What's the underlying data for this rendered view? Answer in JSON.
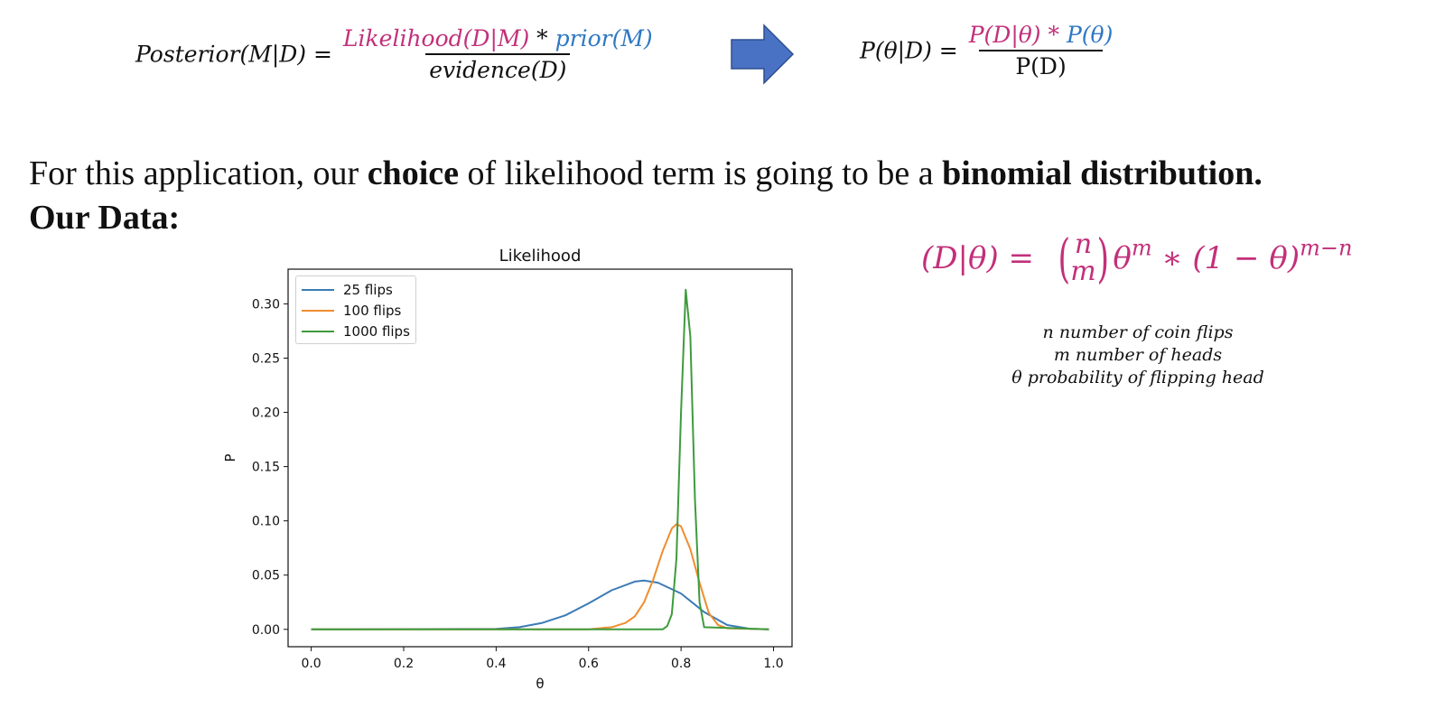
{
  "formula1": {
    "lhs": "Posterior(M|D) =",
    "num_likelihood": "Likelihood(D|M)",
    "num_op": " * ",
    "num_prior": "prior(M)",
    "den": "evidence(D)"
  },
  "arrow_color": "#4a72c4",
  "formula2": {
    "lhs": "P(θ|D) =",
    "num_a": "P(D|θ)",
    "num_op": " * ",
    "num_b": "P(θ)",
    "den": "P(D)"
  },
  "sentence": {
    "part1": "For this application, our ",
    "bold1": "choice",
    "part2": " of likelihood term is going to be a ",
    "bold2": "binomial distribution."
  },
  "our_data": "Our Data:",
  "binomial": {
    "lhs": "(D|θ) = ",
    "n": "n",
    "m": "m",
    "rhs1": "θ",
    "exp1": "m",
    "rhs2": " ∗ (1 − θ)",
    "exp2": "m−n"
  },
  "notes": [
    "n number of coin flips",
    "m number of heads",
    "θ probability of flipping head"
  ],
  "colors": {
    "pink": "#c2307a",
    "blue": "#2f78c4"
  },
  "chart_data": {
    "type": "line",
    "title": "Likelihood",
    "xlabel": "θ",
    "ylabel": "P",
    "xlim": [
      -0.05,
      1.04
    ],
    "ylim": [
      -0.016,
      0.332
    ],
    "xticks": [
      "0.0",
      "0.2",
      "0.4",
      "0.6",
      "0.8",
      "1.0"
    ],
    "yticks": [
      "0.00",
      "0.05",
      "0.10",
      "0.15",
      "0.20",
      "0.25",
      "0.30"
    ],
    "legend_position": "top-left",
    "grid": false,
    "series": [
      {
        "name": "25 flips",
        "color": "#3b7bb6",
        "x": [
          0.0,
          0.4,
          0.45,
          0.5,
          0.55,
          0.6,
          0.65,
          0.7,
          0.72,
          0.75,
          0.8,
          0.85,
          0.9,
          0.95,
          0.99
        ],
        "y": [
          0.0,
          0.0005,
          0.002,
          0.006,
          0.013,
          0.024,
          0.036,
          0.044,
          0.045,
          0.043,
          0.033,
          0.016,
          0.004,
          0.0005,
          0.0
        ]
      },
      {
        "name": "100 flips",
        "color": "#ef8d2e",
        "x": [
          0.0,
          0.6,
          0.65,
          0.68,
          0.7,
          0.72,
          0.74,
          0.76,
          0.78,
          0.79,
          0.8,
          0.82,
          0.84,
          0.86,
          0.88,
          0.9,
          0.99
        ],
        "y": [
          0.0,
          0.0,
          0.002,
          0.006,
          0.012,
          0.025,
          0.046,
          0.072,
          0.093,
          0.097,
          0.095,
          0.074,
          0.043,
          0.015,
          0.004,
          0.001,
          0.0
        ]
      },
      {
        "name": "1000 flips",
        "color": "#3e9b3e",
        "x": [
          0.0,
          0.76,
          0.77,
          0.78,
          0.79,
          0.8,
          0.81,
          0.82,
          0.83,
          0.84,
          0.85,
          0.99
        ],
        "y": [
          0.0,
          0.0,
          0.003,
          0.014,
          0.065,
          0.2,
          0.313,
          0.27,
          0.12,
          0.025,
          0.002,
          0.0
        ]
      }
    ]
  }
}
